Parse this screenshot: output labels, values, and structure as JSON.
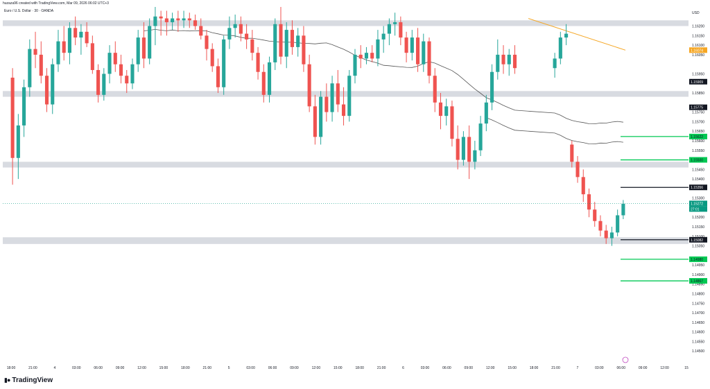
{
  "header": {
    "caption": "huzaza96 created with TradingView.com, Mar 09, 2026 06:02 UTC+3",
    "title": "Euro / U.S. Dollar · 30 · OANDA"
  },
  "footer": {
    "brand": "TradingView",
    "logo_icon": "tradingview-logo-icon"
  },
  "colors": {
    "up": "#26a69a",
    "down": "#ef5350",
    "zone": "#d8dbe1",
    "support": "#00c853",
    "resistance": "#131722",
    "trendline": "#f5a623",
    "price_tag": "#089981",
    "wick_highlight": "#ef5350"
  },
  "chart_data": {
    "type": "candlestick",
    "currency": "USD",
    "ylim": [
      1.1445,
      1.163
    ],
    "x_ticks": [
      "18:00",
      "21:00",
      "4",
      "03:00",
      "06:00",
      "09:00",
      "12:00",
      "15:00",
      "18:00",
      "21:00",
      "5",
      "03:00",
      "06:00",
      "09:00",
      "12:00",
      "15:00",
      "18:00",
      "21:00",
      "6",
      "03:00",
      "06:00",
      "09:00",
      "12:00",
      "15:00",
      "18:00",
      "21:00",
      "7",
      "03:00",
      "06:00",
      "09:00",
      "12:00",
      "15"
    ],
    "y_ticks": [
      1.162,
      1.1615,
      1.161,
      1.1605,
      1.1595,
      1.1585,
      1.1575,
      1.157,
      1.1565,
      1.156,
      1.1555,
      1.155,
      1.1545,
      1.154,
      1.153,
      1.1525,
      1.152,
      1.1515,
      1.151,
      1.1505,
      1.1495,
      1.149,
      1.1485,
      1.148,
      1.1475,
      1.147,
      1.1465,
      1.146,
      1.1455,
      1.145
    ],
    "zones": [
      {
        "from": 1.162,
        "to": 1.1623
      },
      {
        "from": 1.1586,
        "to": 1.1583
      },
      {
        "from": 1.1549,
        "to": 1.1546
      },
      {
        "from": 1.15095,
        "to": 1.1506
      }
    ],
    "levels": [
      {
        "price": 1.15622,
        "label": "1.15622",
        "kind": "support"
      },
      {
        "price": 1.155,
        "label": "1.15500",
        "kind": "support"
      },
      {
        "price": 1.15356,
        "label": "1.15356",
        "kind": "resistance"
      },
      {
        "price": 1.15082,
        "label": "1.15082",
        "kind": "resistance"
      },
      {
        "price": 1.1498,
        "label": "1.14980",
        "kind": "support"
      },
      {
        "price": 1.14867,
        "label": "1.14867",
        "kind": "support"
      }
    ],
    "axis_tags": [
      {
        "price": 1.16074,
        "label": "1.16074",
        "kind": "trend"
      },
      {
        "price": 1.15909,
        "label": "1.15909",
        "kind": "band"
      },
      {
        "price": 1.15775,
        "label": "1.15775",
        "kind": "band"
      }
    ],
    "current_price": {
      "price": 1.15272,
      "label": "1.15272",
      "countdown": "27:01"
    },
    "candles": [
      [
        1.1593,
        1.1598,
        1.1537,
        1.1551
      ],
      [
        1.1551,
        1.1574,
        1.154,
        1.1568
      ],
      [
        1.1568,
        1.1592,
        1.1562,
        1.1588
      ],
      [
        1.1588,
        1.1613,
        1.1583,
        1.1608
      ],
      [
        1.1608,
        1.1617,
        1.1598,
        1.1605
      ],
      [
        1.1605,
        1.1612,
        1.159,
        1.1594
      ],
      [
        1.1594,
        1.1598,
        1.1575,
        1.1579
      ],
      [
        1.1579,
        1.1603,
        1.1574,
        1.16
      ],
      [
        1.16,
        1.1618,
        1.1596,
        1.1612
      ],
      [
        1.1612,
        1.162,
        1.1602,
        1.1606
      ],
      [
        1.1606,
        1.1622,
        1.16,
        1.1619
      ],
      [
        1.1619,
        1.1625,
        1.161,
        1.1614
      ],
      [
        1.1614,
        1.1621,
        1.1605,
        1.1617
      ],
      [
        1.1617,
        1.1622,
        1.1609,
        1.1611
      ],
      [
        1.1611,
        1.1615,
        1.1595,
        1.1597
      ],
      [
        1.1597,
        1.16,
        1.158,
        1.1584
      ],
      [
        1.1584,
        1.1598,
        1.1581,
        1.1595
      ],
      [
        1.1595,
        1.161,
        1.159,
        1.1606
      ],
      [
        1.1606,
        1.1612,
        1.1596,
        1.16
      ],
      [
        1.16,
        1.1605,
        1.159,
        1.1594
      ],
      [
        1.1594,
        1.1597,
        1.1585,
        1.159
      ],
      [
        1.159,
        1.1603,
        1.1587,
        1.16
      ],
      [
        1.16,
        1.1618,
        1.1596,
        1.1614
      ],
      [
        1.1614,
        1.1622,
        1.1598,
        1.1603
      ],
      [
        1.1603,
        1.1624,
        1.16,
        1.162
      ],
      [
        1.162,
        1.163,
        1.161,
        1.1625
      ],
      [
        1.1625,
        1.1628,
        1.1615,
        1.1624
      ],
      [
        1.1624,
        1.1628,
        1.1615,
        1.1622
      ],
      [
        1.1622,
        1.1627,
        1.1618,
        1.1624
      ],
      [
        1.1624,
        1.1628,
        1.1617,
        1.1623
      ],
      [
        1.1623,
        1.1628,
        1.1619,
        1.1624
      ],
      [
        1.1624,
        1.1627,
        1.1619,
        1.1623
      ],
      [
        1.1623,
        1.1626,
        1.1618,
        1.162
      ],
      [
        1.162,
        1.1624,
        1.1613,
        1.1615
      ],
      [
        1.1615,
        1.1618,
        1.1602,
        1.1608
      ],
      [
        1.1608,
        1.1611,
        1.1596,
        1.1599
      ],
      [
        1.1599,
        1.1603,
        1.1585,
        1.1588
      ],
      [
        1.1588,
        1.1615,
        1.1584,
        1.1613
      ],
      [
        1.1613,
        1.1625,
        1.1608,
        1.1619
      ],
      [
        1.1619,
        1.1626,
        1.1614,
        1.1621
      ],
      [
        1.1621,
        1.1625,
        1.1612,
        1.1616
      ],
      [
        1.1616,
        1.1621,
        1.1608,
        1.1613
      ],
      [
        1.1613,
        1.1618,
        1.1602,
        1.1606
      ],
      [
        1.1606,
        1.1609,
        1.1592,
        1.1596
      ],
      [
        1.1596,
        1.16,
        1.158,
        1.1584
      ],
      [
        1.1584,
        1.1604,
        1.158,
        1.1601
      ],
      [
        1.1601,
        1.1624,
        1.1597,
        1.1621
      ],
      [
        1.1621,
        1.163,
        1.16,
        1.1604
      ],
      [
        1.1604,
        1.1622,
        1.1598,
        1.1618
      ],
      [
        1.1618,
        1.1623,
        1.1605,
        1.1609
      ],
      [
        1.1609,
        1.1619,
        1.1604,
        1.1615
      ],
      [
        1.1615,
        1.162,
        1.1596,
        1.16
      ],
      [
        1.16,
        1.1605,
        1.1575,
        1.1578
      ],
      [
        1.1578,
        1.1584,
        1.1558,
        1.1562
      ],
      [
        1.1562,
        1.1586,
        1.1558,
        1.1583
      ],
      [
        1.1583,
        1.159,
        1.157,
        1.1575
      ],
      [
        1.1575,
        1.1594,
        1.157,
        1.159
      ],
      [
        1.159,
        1.1597,
        1.1575,
        1.1579
      ],
      [
        1.1579,
        1.1588,
        1.1568,
        1.1573
      ],
      [
        1.1573,
        1.1597,
        1.157,
        1.1594
      ],
      [
        1.1594,
        1.1608,
        1.159,
        1.1605
      ],
      [
        1.1605,
        1.161,
        1.1598,
        1.1603
      ],
      [
        1.1603,
        1.1609,
        1.16,
        1.1606
      ],
      [
        1.1606,
        1.161,
        1.1601,
        1.1603
      ],
      [
        1.1603,
        1.1618,
        1.1599,
        1.1613
      ],
      [
        1.1613,
        1.162,
        1.1606,
        1.1616
      ],
      [
        1.1616,
        1.1624,
        1.161,
        1.1621
      ],
      [
        1.1621,
        1.1627,
        1.1615,
        1.1622
      ],
      [
        1.1622,
        1.1625,
        1.161,
        1.1614
      ],
      [
        1.1614,
        1.1617,
        1.1601,
        1.1606
      ],
      [
        1.1606,
        1.1618,
        1.1602,
        1.1614
      ],
      [
        1.1614,
        1.1619,
        1.1596,
        1.16
      ],
      [
        1.16,
        1.1616,
        1.1596,
        1.1612
      ],
      [
        1.1612,
        1.1614,
        1.159,
        1.1594
      ],
      [
        1.1594,
        1.1598,
        1.1575,
        1.158
      ],
      [
        1.158,
        1.1585,
        1.1566,
        1.1573
      ],
      [
        1.1573,
        1.1582,
        1.1568,
        1.1578
      ],
      [
        1.1578,
        1.1581,
        1.1557,
        1.1561
      ],
      [
        1.1561,
        1.1568,
        1.1545,
        1.155
      ],
      [
        1.155,
        1.1565,
        1.1547,
        1.1562
      ],
      [
        1.1562,
        1.1568,
        1.154,
        1.1549
      ],
      [
        1.1549,
        1.156,
        1.1545,
        1.1555
      ],
      [
        1.1555,
        1.1573,
        1.1552,
        1.1569
      ],
      [
        1.1569,
        1.1584,
        1.1565,
        1.158
      ],
      [
        1.158,
        1.16,
        1.1576,
        1.1596
      ],
      [
        1.1596,
        1.1613,
        1.1592,
        1.1605
      ],
      [
        1.1605,
        1.161,
        1.1595,
        1.16
      ],
      [
        1.16,
        1.1608,
        1.1594,
        1.1605
      ],
      [
        1.1605,
        1.161,
        1.1595,
        1.1598
      ],
      [
        1.1598,
        1.1606,
        1.1593,
        1.1603
      ],
      [
        1.1603,
        1.1617,
        1.16,
        1.1614
      ],
      [
        1.1614,
        1.1621,
        1.161,
        1.1616
      ],
      [
        1.1558,
        1.156,
        1.1546,
        1.1549
      ],
      [
        1.1549,
        1.1552,
        1.1538,
        1.1541
      ],
      [
        1.1541,
        1.1545,
        1.1528,
        1.1532
      ],
      [
        1.1532,
        1.1535,
        1.152,
        1.1524
      ],
      [
        1.1524,
        1.1528,
        1.1515,
        1.1518
      ],
      [
        1.1518,
        1.1521,
        1.151,
        1.1513
      ],
      [
        1.1513,
        1.1516,
        1.1506,
        1.1509
      ],
      [
        1.1509,
        1.1515,
        1.1505,
        1.1512
      ],
      [
        1.1512,
        1.1524,
        1.151,
        1.1521
      ],
      [
        1.1521,
        1.1529,
        1.1519,
        1.1527
      ]
    ]
  }
}
